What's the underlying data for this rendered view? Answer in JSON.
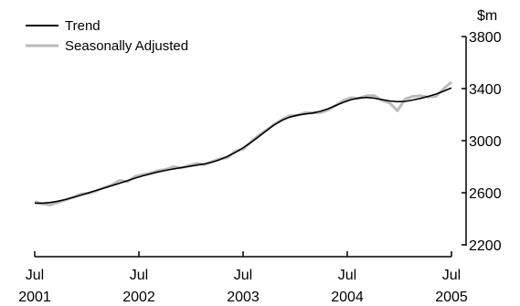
{
  "chart_data": {
    "type": "line",
    "title": "",
    "xlabel": "",
    "ylabel": "$m",
    "ylim": [
      2200,
      3800
    ],
    "yticks": [
      "3800",
      "3400",
      "3000",
      "2600",
      "2200"
    ],
    "xticks": [
      {
        "month": "Jul",
        "year": "2001"
      },
      {
        "month": "Jul",
        "year": "2002"
      },
      {
        "month": "Jul",
        "year": "2003"
      },
      {
        "month": "Jul",
        "year": "2004"
      },
      {
        "month": "Jul",
        "year": "2005"
      }
    ],
    "x_start": "2001-07",
    "x_end": "2005-07",
    "grid": false,
    "legend_position": "top-left",
    "series": [
      {
        "name": "Trend",
        "color": "#000000",
        "values": [
          2520,
          2520,
          2525,
          2535,
          2548,
          2565,
          2582,
          2600,
          2618,
          2636,
          2655,
          2673,
          2692,
          2712,
          2730,
          2745,
          2760,
          2772,
          2783,
          2793,
          2802,
          2812,
          2822,
          2835,
          2855,
          2880,
          2910,
          2945,
          2985,
          3030,
          3075,
          3120,
          3155,
          3180,
          3195,
          3205,
          3212,
          3225,
          3245,
          3270,
          3295,
          3315,
          3328,
          3332,
          3326,
          3315,
          3305,
          3300,
          3302,
          3312,
          3325,
          3340,
          3358,
          3380,
          3405
        ]
      },
      {
        "name": "Seasonally Adjusted",
        "color": "#bbbbbb",
        "values": [
          2530,
          2515,
          2505,
          2525,
          2545,
          2565,
          2590,
          2595,
          2615,
          2640,
          2660,
          2695,
          2685,
          2725,
          2740,
          2750,
          2770,
          2780,
          2800,
          2790,
          2810,
          2825,
          2815,
          2840,
          2860,
          2870,
          2920,
          2935,
          2990,
          3040,
          3080,
          3125,
          3160,
          3190,
          3195,
          3215,
          3215,
          3215,
          3235,
          3270,
          3310,
          3330,
          3325,
          3345,
          3345,
          3310,
          3290,
          3230,
          3320,
          3340,
          3345,
          3335,
          3340,
          3400,
          3450
        ]
      }
    ]
  }
}
